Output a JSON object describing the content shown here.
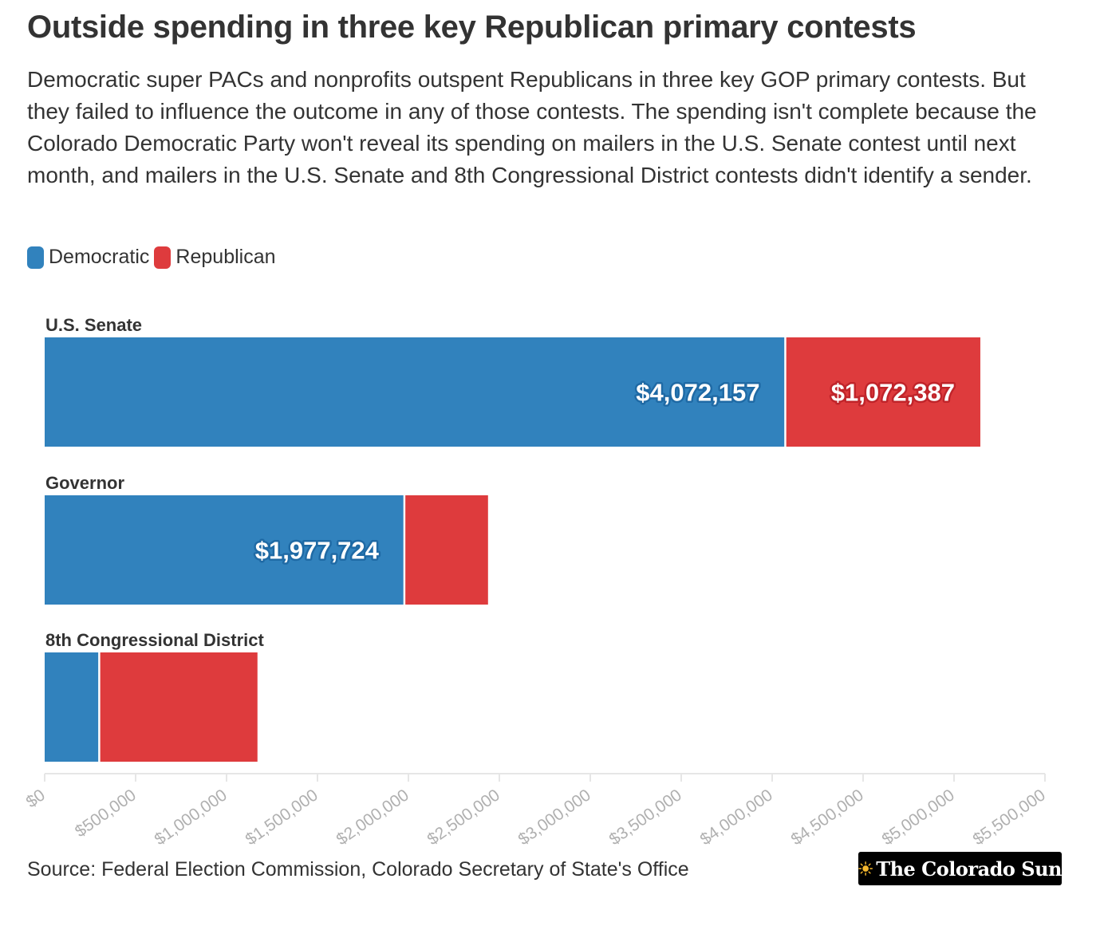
{
  "header": {
    "title": "Outside spending in three key Republican primary contests",
    "subtitle": "Democratic super PACs and nonprofits outspent Republicans in three key GOP primary contests. But they failed to influence the outcome in any of those contests. The spending isn't complete because the Colorado Democratic Party won't reveal its spending on mailers in the U.S. Senate contest until next month, and mailers in the U.S. Senate and 8th Congressional District contests didn't identify a sender."
  },
  "legend": {
    "items": [
      {
        "label": "Democratic",
        "color": "#3182bd"
      },
      {
        "label": "Republican",
        "color": "#de3b3d"
      }
    ]
  },
  "chart_data": {
    "type": "bar",
    "orientation": "horizontal",
    "stacked": true,
    "categories": [
      "U.S. Senate",
      "Governor",
      "8th Congressional District"
    ],
    "series": [
      {
        "name": "Democratic",
        "color": "#3182bd",
        "values": [
          4072157,
          1977724,
          300000
        ],
        "labels": [
          "$4,072,157",
          "$1,977,724",
          ""
        ]
      },
      {
        "name": "Republican",
        "color": "#de3b3d",
        "values": [
          1072387,
          460000,
          870000
        ],
        "labels": [
          "$1,072,387",
          "",
          ""
        ]
      }
    ],
    "xlim": [
      0,
      5500000
    ],
    "x_ticks": [
      0,
      500000,
      1000000,
      1500000,
      2000000,
      2500000,
      3000000,
      3500000,
      4000000,
      4500000,
      5000000,
      5500000
    ],
    "x_tick_labels": [
      "$0",
      "$500,000",
      "$1,000,000",
      "$1,500,000",
      "$2,000,000",
      "$2,500,000",
      "$3,000,000",
      "$3,500,000",
      "$4,000,000",
      "$4,500,000",
      "$5,000,000",
      "$5,500,000"
    ],
    "grid": false,
    "legend_position": "top-left"
  },
  "footer": {
    "source": "Source: Federal Election Commission, Colorado Secretary of State's Office",
    "logo_text": "The Colorado Sun"
  }
}
